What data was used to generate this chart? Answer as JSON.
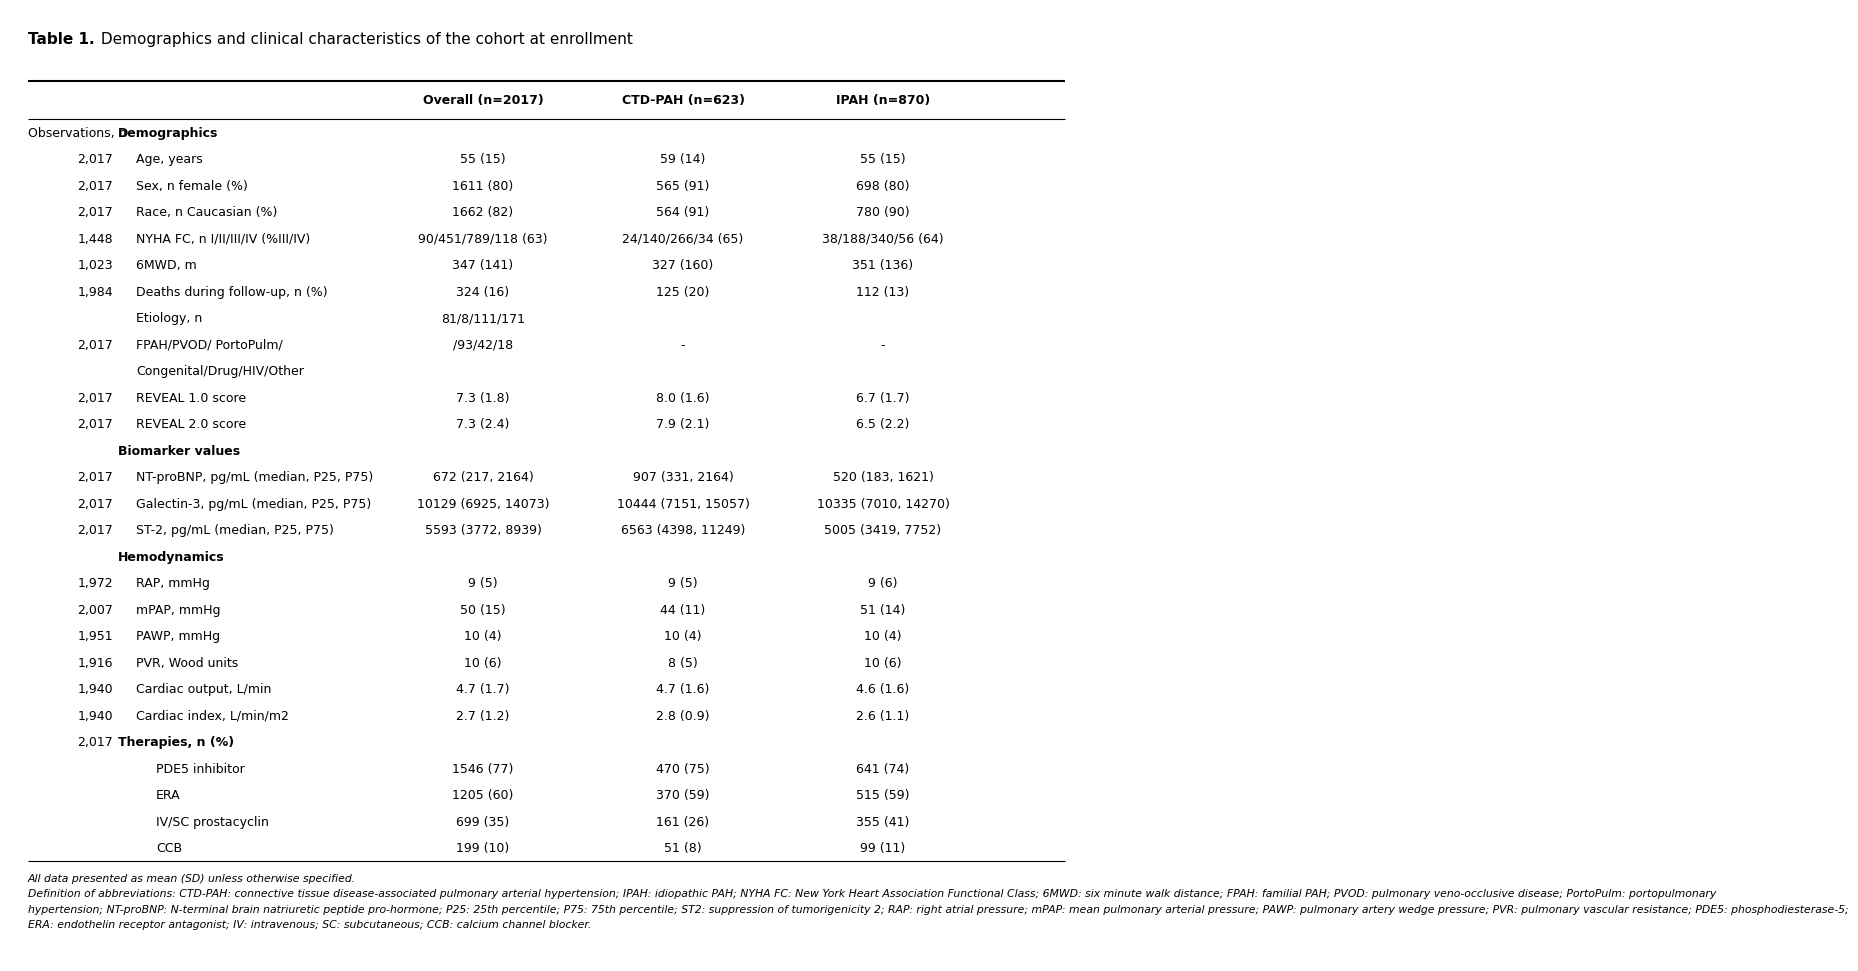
{
  "title_bold": "Table 1.",
  "title_regular": " Demographics and clinical characteristics of the cohort at enrollment",
  "col_headers": [
    "Overall (n=2017)",
    "CTD-PAH (n=623)",
    "IPAH (n=870)"
  ],
  "rows": [
    {
      "n": "Observations, n",
      "label": "Demographics",
      "vals": [
        "",
        "",
        ""
      ],
      "label_bold": true,
      "n_bold": false,
      "n_lines": 1,
      "indent": 0
    },
    {
      "n": "2,017",
      "label": "Age, years",
      "vals": [
        "55 (15)",
        "59 (14)",
        "55 (15)"
      ],
      "label_bold": false,
      "n_lines": 1,
      "indent": 1
    },
    {
      "n": "2,017",
      "label": "Sex, n female (%)",
      "vals": [
        "1611 (80)",
        "565 (91)",
        "698 (80)"
      ],
      "label_bold": false,
      "n_lines": 1,
      "indent": 1
    },
    {
      "n": "2,017",
      "label": "Race, n Caucasian (%)",
      "vals": [
        "1662 (82)",
        "564 (91)",
        "780 (90)"
      ],
      "label_bold": false,
      "n_lines": 1,
      "indent": 1
    },
    {
      "n": "1,448",
      "label": "NYHA FC, n I/II/III/IV (%III/IV)",
      "vals": [
        "90/451/789/118 (63)",
        "24/140/266/34 (65)",
        "38/188/340/56 (64)"
      ],
      "label_bold": false,
      "n_lines": 1,
      "indent": 1
    },
    {
      "n": "1,023",
      "label": "6MWD, m",
      "vals": [
        "347 (141)",
        "327 (160)",
        "351 (136)"
      ],
      "label_bold": false,
      "n_lines": 1,
      "indent": 1
    },
    {
      "n": "1,984",
      "label": "Deaths during follow-up, n (%)",
      "vals": [
        "324 (16)",
        "125 (20)",
        "112 (13)"
      ],
      "label_bold": false,
      "n_lines": 1,
      "indent": 1
    },
    {
      "n": "2,017",
      "label": "Etiology, n\nFPAH/PVOD/ PortoPulm/\nCongenital/Drug/HIV/Other",
      "vals": [
        "81/8/111/171\n/93/42/18",
        "-",
        "-"
      ],
      "label_bold": false,
      "n_lines": 3,
      "indent": 1
    },
    {
      "n": "2,017",
      "label": "REVEAL 1.0 score",
      "vals": [
        "7.3 (1.8)",
        "8.0 (1.6)",
        "6.7 (1.7)"
      ],
      "label_bold": false,
      "n_lines": 1,
      "indent": 1
    },
    {
      "n": "2,017",
      "label": "REVEAL 2.0 score",
      "vals": [
        "7.3 (2.4)",
        "7.9 (2.1)",
        "6.5 (2.2)"
      ],
      "label_bold": false,
      "n_lines": 1,
      "indent": 1
    },
    {
      "n": "",
      "label": "Biomarker values",
      "vals": [
        "",
        "",
        ""
      ],
      "label_bold": true,
      "n_lines": 1,
      "indent": 0
    },
    {
      "n": "2,017",
      "label": "NT-proBNP, pg/mL (median, P25, P75)",
      "vals": [
        "672 (217, 2164)",
        "907 (331, 2164)",
        "520 (183, 1621)"
      ],
      "label_bold": false,
      "n_lines": 1,
      "indent": 1
    },
    {
      "n": "2,017",
      "label": "Galectin-3, pg/mL (median, P25, P75)",
      "vals": [
        "10129 (6925, 14073)",
        "10444 (7151, 15057)",
        "10335 (7010, 14270)"
      ],
      "label_bold": false,
      "n_lines": 1,
      "indent": 1
    },
    {
      "n": "2,017",
      "label": "ST-2, pg/mL (median, P25, P75)",
      "vals": [
        "5593 (3772, 8939)",
        "6563 (4398, 11249)",
        "5005 (3419, 7752)"
      ],
      "label_bold": false,
      "n_lines": 1,
      "indent": 1
    },
    {
      "n": "",
      "label": "Hemodynamics",
      "vals": [
        "",
        "",
        ""
      ],
      "label_bold": true,
      "n_lines": 1,
      "indent": 0
    },
    {
      "n": "1,972",
      "label": "RAP, mmHg",
      "vals": [
        "9 (5)",
        "9 (5)",
        "9 (6)"
      ],
      "label_bold": false,
      "n_lines": 1,
      "indent": 1
    },
    {
      "n": "2,007",
      "label": "mPAP, mmHg",
      "vals": [
        "50 (15)",
        "44 (11)",
        "51 (14)"
      ],
      "label_bold": false,
      "n_lines": 1,
      "indent": 1
    },
    {
      "n": "1,951",
      "label": "PAWP, mmHg",
      "vals": [
        "10 (4)",
        "10 (4)",
        "10 (4)"
      ],
      "label_bold": false,
      "n_lines": 1,
      "indent": 1
    },
    {
      "n": "1,916",
      "label": "PVR, Wood units",
      "vals": [
        "10 (6)",
        "8 (5)",
        "10 (6)"
      ],
      "label_bold": false,
      "n_lines": 1,
      "indent": 1
    },
    {
      "n": "1,940",
      "label": "Cardiac output, L/min",
      "vals": [
        "4.7 (1.7)",
        "4.7 (1.6)",
        "4.6 (1.6)"
      ],
      "label_bold": false,
      "n_lines": 1,
      "indent": 1
    },
    {
      "n": "1,940",
      "label": "Cardiac index, L/min/m2",
      "vals": [
        "2.7 (1.2)",
        "2.8 (0.9)",
        "2.6 (1.1)"
      ],
      "label_bold": false,
      "n_lines": 1,
      "indent": 1
    },
    {
      "n": "2,017",
      "label": "Therapies, n (%)",
      "vals": [
        "",
        "",
        ""
      ],
      "label_bold": true,
      "n_lines": 1,
      "indent": 0
    },
    {
      "n": "",
      "label": "PDE5 inhibitor",
      "vals": [
        "1546 (77)",
        "470 (75)",
        "641 (74)"
      ],
      "label_bold": false,
      "n_lines": 1,
      "indent": 2
    },
    {
      "n": "",
      "label": "ERA",
      "vals": [
        "1205 (60)",
        "370 (59)",
        "515 (59)"
      ],
      "label_bold": false,
      "n_lines": 1,
      "indent": 2
    },
    {
      "n": "",
      "label": "IV/SC prostacyclin",
      "vals": [
        "699 (35)",
        "161 (26)",
        "355 (41)"
      ],
      "label_bold": false,
      "n_lines": 1,
      "indent": 2
    },
    {
      "n": "",
      "label": "CCB",
      "vals": [
        "199 (10)",
        "51 (8)",
        "99 (11)"
      ],
      "label_bold": false,
      "n_lines": 1,
      "indent": 2
    }
  ],
  "footnote_lines": [
    "All data presented as mean (SD) unless otherwise specified.",
    "Definition of abbreviations: CTD-PAH: connective tissue disease-associated pulmonary arterial hypertension; IPAH: idiopathic PAH; NYHA FC: New York Heart Association Functional Class; 6MWD: six minute walk distance; FPAH: familial PAH; PVOD: pulmonary veno-occlusive disease; PortoPulm: portopulmonary",
    "hypertension; NT-proBNP: N-terminal brain natriuretic peptide pro-hormone; P25: 25th percentile; P75: 75th percentile; ST2: suppression of tumorigenicity 2; RAP: right atrial pressure; mPAP: mean pulmonary arterial pressure; PAWP: pulmonary artery wedge pressure; PVR: pulmonary vascular resistance; PDE5: phosphodiesterase-5;",
    "ERA: endothelin receptor antagonist; IV: intravenous; SC: subcutaneous; CCB: calcium channel blocker."
  ]
}
